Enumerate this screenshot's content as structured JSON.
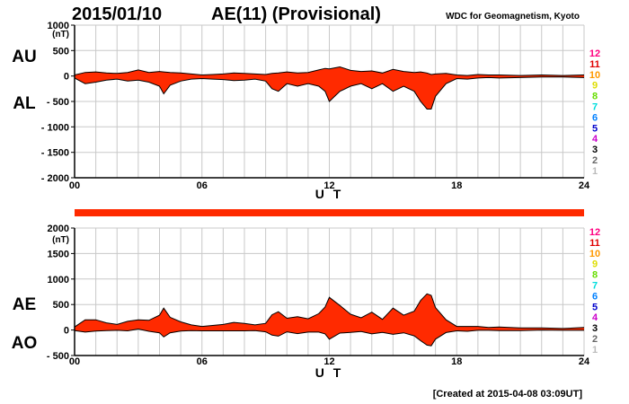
{
  "header": {
    "date": "2015/01/10",
    "title": "AE(11) (Provisional)",
    "source": "WDC for Geomagnetism, Kyoto"
  },
  "footer": {
    "created": "[Created at 2015-04-08 03:09UT]"
  },
  "level_scale": [
    "12",
    "11",
    "10",
    "9",
    "8",
    "7",
    "6",
    "5",
    "4",
    "3",
    "2",
    "1"
  ],
  "level_colors": [
    "#ff0080",
    "#e00000",
    "#ff9900",
    "#dddd00",
    "#66dd00",
    "#00dddd",
    "#0080ff",
    "#0000cc",
    "#cc00cc",
    "#000000",
    "#666666",
    "#bbbbbb"
  ],
  "fill_color": "#ff2a00",
  "chart_data": [
    {
      "type": "area",
      "panel": "AU/AL",
      "labels": [
        "AU",
        "AL"
      ],
      "unit": "(nT)",
      "xlabel": "U T",
      "xticks": [
        "00",
        "06",
        "12",
        "18",
        "24"
      ],
      "xlim": [
        0,
        24
      ],
      "yticks": [
        "1000",
        "500",
        "0",
        "- 500",
        "- 1000",
        "- 1500",
        "- 2000"
      ],
      "ylim": [
        -2000,
        1000
      ],
      "x": [
        0,
        0.5,
        1,
        1.5,
        2,
        2.5,
        3,
        3.5,
        4,
        4.2,
        4.5,
        5,
        5.5,
        6,
        6.5,
        7,
        7.5,
        8,
        8.5,
        9,
        9.3,
        9.6,
        10,
        10.5,
        11,
        11.5,
        11.8,
        12,
        12.5,
        13,
        13.5,
        14,
        14.5,
        15,
        15.5,
        16,
        16.3,
        16.6,
        16.8,
        17,
        17.5,
        18,
        18.5,
        19,
        19.5,
        20,
        21,
        22,
        23,
        24
      ],
      "series": [
        {
          "name": "AU",
          "values": [
            20,
            70,
            80,
            60,
            50,
            70,
            120,
            70,
            90,
            80,
            70,
            60,
            40,
            20,
            30,
            40,
            60,
            50,
            40,
            30,
            50,
            60,
            80,
            60,
            70,
            120,
            150,
            140,
            180,
            110,
            90,
            100,
            60,
            130,
            90,
            70,
            80,
            60,
            30,
            40,
            50,
            20,
            10,
            30,
            20,
            20,
            10,
            20,
            10,
            20
          ]
        },
        {
          "name": "AL",
          "values": [
            -40,
            -150,
            -120,
            -80,
            -60,
            -100,
            -80,
            -120,
            -200,
            -350,
            -180,
            -100,
            -60,
            -50,
            -60,
            -70,
            -90,
            -80,
            -60,
            -100,
            -250,
            -300,
            -150,
            -200,
            -150,
            -200,
            -300,
            -500,
            -300,
            -200,
            -150,
            -250,
            -150,
            -300,
            -200,
            -300,
            -500,
            -650,
            -650,
            -400,
            -150,
            -50,
            -60,
            -40,
            -30,
            -40,
            -30,
            -20,
            -20,
            -30
          ]
        }
      ]
    },
    {
      "type": "area",
      "panel": "AE/AO",
      "labels": [
        "AE",
        "AO"
      ],
      "unit": "(nT)",
      "xlabel": "U T",
      "xticks": [
        "00",
        "06",
        "12",
        "18",
        "24"
      ],
      "xlim": [
        0,
        24
      ],
      "yticks": [
        "2000",
        "1500",
        "1000",
        "500",
        "0",
        "- 500"
      ],
      "ylim": [
        -500,
        2000
      ],
      "x": [
        0,
        0.5,
        1,
        1.5,
        2,
        2.5,
        3,
        3.5,
        4,
        4.2,
        4.5,
        5,
        5.5,
        6,
        6.5,
        7,
        7.5,
        8,
        8.5,
        9,
        9.3,
        9.6,
        10,
        10.5,
        11,
        11.5,
        11.8,
        12,
        12.5,
        13,
        13.5,
        14,
        14.5,
        15,
        15.5,
        16,
        16.3,
        16.6,
        16.8,
        17,
        17.5,
        18,
        18.5,
        19,
        19.5,
        20,
        21,
        22,
        23,
        24
      ],
      "series": [
        {
          "name": "AE",
          "values": [
            60,
            200,
            200,
            140,
            110,
            170,
            200,
            190,
            290,
            430,
            250,
            160,
            100,
            70,
            90,
            110,
            150,
            130,
            100,
            130,
            300,
            360,
            230,
            260,
            220,
            320,
            450,
            640,
            480,
            310,
            240,
            350,
            210,
            430,
            290,
            370,
            580,
            710,
            680,
            440,
            200,
            70,
            70,
            70,
            50,
            60,
            40,
            40,
            30,
            50
          ]
        },
        {
          "name": "AO",
          "values": [
            -10,
            -40,
            -20,
            -10,
            -5,
            -15,
            20,
            -25,
            -55,
            -135,
            -55,
            -20,
            -10,
            -15,
            -15,
            -15,
            -15,
            -15,
            -10,
            -35,
            -100,
            -120,
            -35,
            -70,
            -40,
            -40,
            -75,
            -180,
            -60,
            -45,
            -30,
            -75,
            -45,
            -85,
            -55,
            -115,
            -210,
            -295,
            -310,
            -180,
            -50,
            -15,
            -25,
            -5,
            -5,
            -10,
            -10,
            0,
            -5,
            -5
          ]
        }
      ]
    }
  ]
}
